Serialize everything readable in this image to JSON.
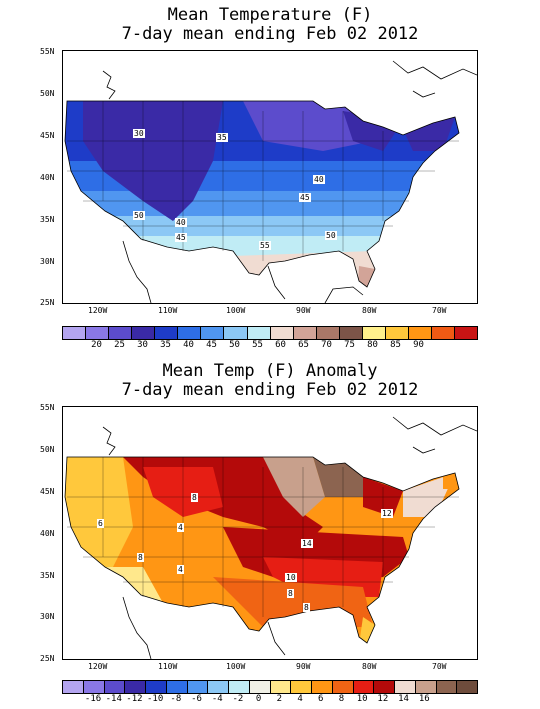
{
  "panels": [
    {
      "title_line1": "Mean Temperature (F)",
      "title_line2": "7-day mean ending Feb 02 2012",
      "lat_labels": [
        "55N",
        "50N",
        "45N",
        "40N",
        "35N",
        "30N",
        "25N"
      ],
      "lon_labels": [
        "120W",
        "110W",
        "100W",
        "90W",
        "80W",
        "70W"
      ],
      "colorbar": {
        "colors": [
          "#b4a5f0",
          "#8a78e6",
          "#5c4ccc",
          "#3a2aa6",
          "#1e3cc8",
          "#2e6ee6",
          "#5096f0",
          "#8cc8f5",
          "#c0ecf5",
          "#f0dcd2",
          "#d2a498",
          "#aa7868",
          "#7c5448",
          "#fff08c",
          "#ffc83c",
          "#ff9614",
          "#f05a14",
          "#c81414"
        ],
        "labels": [
          "20",
          "25",
          "30",
          "35",
          "40",
          "45",
          "50",
          "55",
          "60",
          "65",
          "70",
          "75",
          "80",
          "85",
          "90"
        ]
      },
      "contour_labels": [
        "30",
        "35",
        "40",
        "45",
        "50",
        "40",
        "45",
        "50",
        "55"
      ]
    },
    {
      "title_line1": "Mean Temp (F) Anomaly",
      "title_line2": "7-day mean ending Feb 02 2012",
      "lat_labels": [
        "55N",
        "50N",
        "45N",
        "40N",
        "35N",
        "30N",
        "25N"
      ],
      "lon_labels": [
        "120W",
        "110W",
        "100W",
        "90W",
        "80W",
        "70W"
      ],
      "colorbar": {
        "colors": [
          "#b4a5f0",
          "#8a78e6",
          "#5c4ccc",
          "#3a2aa6",
          "#1e3cc8",
          "#2e6ee6",
          "#5096f0",
          "#8cc8f5",
          "#c0ecf5",
          "#f0f0e6",
          "#ffe88c",
          "#ffc83c",
          "#ff9614",
          "#f06414",
          "#e61e14",
          "#b40a0a",
          "#f0dcd2",
          "#c8a08c",
          "#8c6450",
          "#6e4c3c"
        ],
        "labels": [
          "-16",
          "-14",
          "-12",
          "-10",
          "-8",
          "-6",
          "-4",
          "-2",
          "0",
          "2",
          "4",
          "6",
          "8",
          "10",
          "12",
          "14",
          "16"
        ]
      },
      "contour_labels": [
        "8",
        "6",
        "4",
        "8",
        "4",
        "14",
        "12",
        "10",
        "8",
        "8"
      ]
    }
  ]
}
